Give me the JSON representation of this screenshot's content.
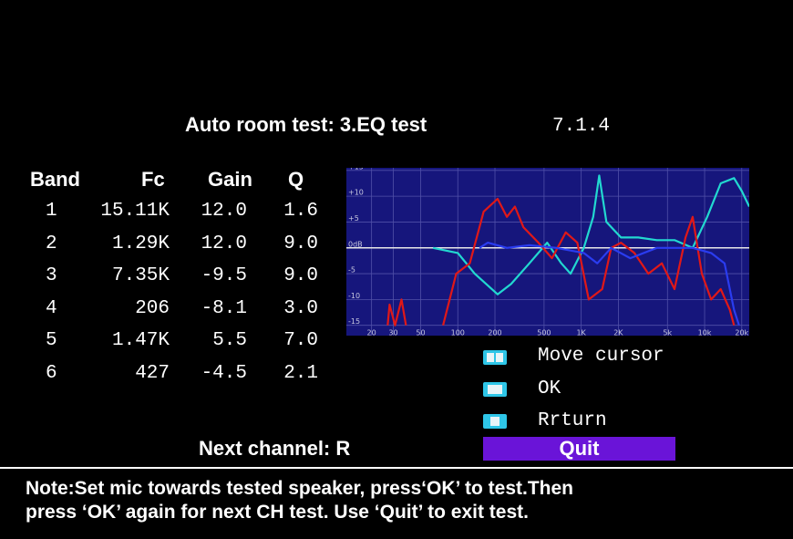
{
  "header": {
    "title": "Auto room test: 3.EQ test",
    "layout": "7.1.4"
  },
  "table": {
    "columns": [
      "Band",
      "Fc",
      "Gain",
      "Q"
    ],
    "rows": [
      [
        "1",
        "15.11K",
        "12.0",
        "1.6"
      ],
      [
        "2",
        "1.29K",
        "12.0",
        "9.0"
      ],
      [
        "3",
        "7.35K",
        "-9.5",
        "9.0"
      ],
      [
        "4",
        "206",
        "-8.1",
        "3.0"
      ],
      [
        "5",
        "1.47K",
        "5.5",
        "7.0"
      ],
      [
        "6",
        "427",
        "-4.5",
        "2.1"
      ]
    ]
  },
  "chart_data": {
    "type": "line",
    "xscale": "log",
    "grid": true,
    "background": "#16167c",
    "xlim": [
      12.5,
      23000
    ],
    "ylim": [
      -17,
      15.5
    ],
    "xticks": [
      20,
      30,
      50,
      100,
      200,
      500,
      {
        "value": 1000,
        "label": "1K"
      },
      {
        "value": 2000,
        "label": "2K"
      },
      {
        "value": 5000,
        "label": "5k"
      },
      {
        "value": 10000,
        "label": "10k"
      },
      {
        "value": 20000,
        "label": "20k"
      }
    ],
    "yticks": [
      {
        "value": 15,
        "label": "+15"
      },
      {
        "value": 10,
        "label": "+10"
      },
      {
        "value": 5,
        "label": "+5"
      },
      {
        "value": 0,
        "label": "0dB"
      },
      -5,
      -10,
      -15
    ],
    "series": [
      {
        "color": "#22d8d0",
        "x": [
          63,
          100,
          137,
          210,
          270,
          380,
          530,
          690,
          820,
          1050,
          1250,
          1400,
          1600,
          2100,
          2900,
          4100,
          5700,
          8000,
          10500,
          13500,
          17300,
          20000,
          23000
        ],
        "values": [
          0,
          -1,
          -5,
          -9,
          -7,
          -3,
          1,
          -3,
          -5,
          0,
          6,
          14,
          5,
          2,
          2,
          1.5,
          1.5,
          0,
          6,
          12.5,
          13.5,
          11,
          8
        ]
      },
      {
        "color": "#e01818",
        "x": [
          27,
          28,
          31,
          35,
          38
        ],
        "values": [
          -15,
          -11,
          -15,
          -10,
          -15
        ]
      },
      {
        "color": "#e01818",
        "x": [
          76,
          97,
          125,
          162,
          210,
          250,
          290,
          340,
          450,
          580,
          750,
          930,
          1150,
          1480,
          1750,
          2100,
          2700,
          3500,
          4500,
          5700,
          7000,
          8000,
          9500,
          11300,
          13500,
          16000,
          17300
        ],
        "values": [
          -15,
          -5,
          -3,
          7,
          9.5,
          6,
          8,
          4,
          1,
          -2,
          3,
          1,
          -10,
          -8,
          0,
          1,
          -1,
          -5,
          -3,
          -8,
          2,
          6,
          -5,
          -10,
          -8,
          -12,
          -15
        ]
      },
      {
        "color": "#2a3cf0",
        "x": [
          150,
          175,
          250,
          380,
          630,
          1050,
          1350,
          1750,
          2500,
          4100,
          8000,
          11300,
          14500,
          17300,
          19000
        ],
        "values": [
          0,
          1,
          0,
          0.5,
          0,
          -1,
          -3,
          0,
          -2,
          0,
          0,
          -1,
          -3,
          -12,
          -15
        ]
      }
    ]
  },
  "controls": [
    {
      "label": "Move cursor"
    },
    {
      "label": "OK"
    },
    {
      "label": "Rrturn"
    }
  ],
  "next_channel": "Next channel: R",
  "quit": "Quit",
  "note": [
    "Note:Set mic towards tested speaker, press‘OK’ to test.Then",
    "press ‘OK’ again for next CH test. Use ‘Quit’ to exit test."
  ]
}
